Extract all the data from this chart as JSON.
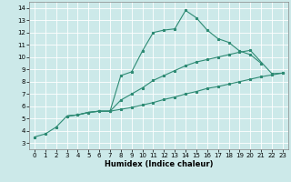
{
  "xlabel": "Humidex (Indice chaleur)",
  "ylabel": "",
  "background_color": "#cce9e9",
  "grid_color": "#ffffff",
  "line_color": "#2e8b74",
  "xlim": [
    -0.5,
    23.5
  ],
  "ylim": [
    2.5,
    14.5
  ],
  "xticks": [
    0,
    1,
    2,
    3,
    4,
    5,
    6,
    7,
    8,
    9,
    10,
    11,
    12,
    13,
    14,
    15,
    16,
    17,
    18,
    19,
    20,
    21,
    22,
    23
  ],
  "yticks": [
    3,
    4,
    5,
    6,
    7,
    8,
    9,
    10,
    11,
    12,
    13,
    14
  ],
  "line_a_x": [
    0,
    1,
    2,
    3,
    4,
    5,
    6,
    7,
    8,
    9,
    10,
    11,
    12,
    13,
    14,
    15,
    16,
    17,
    18,
    19,
    20,
    21
  ],
  "line_a_y": [
    3.5,
    3.75,
    4.3,
    5.2,
    5.3,
    5.5,
    5.6,
    5.6,
    8.5,
    8.8,
    10.5,
    12.0,
    12.2,
    12.3,
    13.8,
    13.2,
    12.2,
    11.5,
    11.2,
    10.5,
    10.2,
    9.5
  ],
  "line_b_x": [
    3,
    4,
    5,
    6,
    7,
    8,
    9,
    10,
    11,
    12,
    13,
    14,
    15,
    16,
    17,
    18,
    19,
    20,
    22,
    23
  ],
  "line_b_y": [
    5.2,
    5.3,
    5.5,
    5.6,
    5.6,
    6.5,
    7.0,
    7.5,
    8.1,
    8.5,
    8.9,
    9.3,
    9.6,
    9.8,
    10.0,
    10.2,
    10.4,
    10.55,
    8.65,
    8.7
  ],
  "line_c_x": [
    3,
    4,
    5,
    6,
    7,
    8,
    9,
    10,
    11,
    12,
    13,
    14,
    15,
    16,
    17,
    18,
    19,
    20,
    21,
    22,
    23
  ],
  "line_c_y": [
    5.2,
    5.3,
    5.5,
    5.6,
    5.6,
    5.75,
    5.9,
    6.1,
    6.3,
    6.55,
    6.75,
    7.0,
    7.2,
    7.45,
    7.6,
    7.8,
    8.0,
    8.2,
    8.4,
    8.55,
    8.7
  ]
}
